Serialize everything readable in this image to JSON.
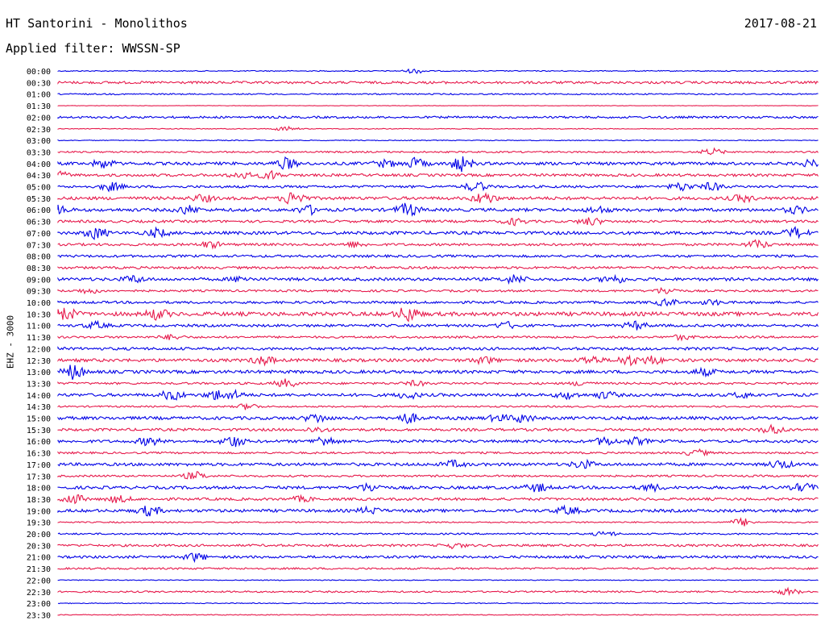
{
  "header": {
    "station": "HT Santorini - Monolithos",
    "date": "2017-08-21",
    "filter_label": "Applied filter: WWSSN-SP",
    "channel_label": "EHZ - 3000"
  },
  "colors": {
    "even_trace": "#0000e6",
    "odd_trace": "#e6194b"
  },
  "chart_data": {
    "type": "line",
    "title": "HT Santorini - Monolithos",
    "categories": [
      "00:00",
      "00:30",
      "01:00",
      "01:30",
      "02:00",
      "02:30",
      "03:00",
      "03:30",
      "04:00",
      "04:30",
      "05:00",
      "05:30",
      "06:00",
      "06:30",
      "07:00",
      "07:30",
      "08:00",
      "08:30",
      "09:00",
      "09:30",
      "10:00",
      "10:30",
      "11:00",
      "11:30",
      "12:00",
      "12:30",
      "13:00",
      "13:30",
      "14:00",
      "14:30",
      "15:00",
      "15:30",
      "16:00",
      "16:30",
      "17:00",
      "17:30",
      "18:00",
      "18:30",
      "19:00",
      "19:30",
      "20:00",
      "20:30",
      "21:00",
      "21:30",
      "22:00",
      "22:30",
      "23:00",
      "23:30"
    ],
    "series": [
      {
        "noise": 0.6,
        "events": [
          [
            47,
            3
          ]
        ]
      },
      {
        "noise": 1.5,
        "events": []
      },
      {
        "noise": 0.8,
        "events": []
      },
      {
        "noise": 0.3,
        "events": []
      },
      {
        "noise": 1.3,
        "events": []
      },
      {
        "noise": 0.5,
        "events": [
          [
            30,
            3
          ]
        ]
      },
      {
        "noise": 0.5,
        "events": []
      },
      {
        "noise": 1.0,
        "events": [
          [
            86,
            4
          ]
        ]
      },
      {
        "noise": 1.8,
        "events": [
          [
            6,
            5
          ],
          [
            30,
            7
          ],
          [
            43,
            4
          ],
          [
            47,
            6
          ],
          [
            53,
            9
          ],
          [
            99,
            4
          ]
        ]
      },
      {
        "noise": 1.6,
        "events": [
          [
            0,
            4
          ],
          [
            24,
            4
          ],
          [
            28,
            5
          ]
        ]
      },
      {
        "noise": 1.5,
        "events": [
          [
            7,
            5
          ],
          [
            55,
            6
          ],
          [
            82,
            5
          ],
          [
            86,
            5
          ]
        ]
      },
      {
        "noise": 1.9,
        "events": [
          [
            19,
            4
          ],
          [
            31,
            9
          ],
          [
            56,
            7
          ],
          [
            90,
            4
          ]
        ]
      },
      {
        "noise": 1.9,
        "events": [
          [
            0,
            5
          ],
          [
            17,
            5
          ],
          [
            33,
            5
          ],
          [
            46,
            8
          ],
          [
            71,
            4
          ],
          [
            97,
            4
          ]
        ]
      },
      {
        "noise": 1.5,
        "events": [
          [
            60,
            4
          ],
          [
            70,
            5
          ]
        ]
      },
      {
        "noise": 1.9,
        "events": [
          [
            5,
            7
          ],
          [
            13,
            5
          ],
          [
            97,
            6
          ]
        ]
      },
      {
        "noise": 1.5,
        "events": [
          [
            20,
            4
          ],
          [
            39,
            3
          ],
          [
            92,
            5
          ]
        ]
      },
      {
        "noise": 1.5,
        "events": []
      },
      {
        "noise": 1.5,
        "events": []
      },
      {
        "noise": 1.8,
        "events": [
          [
            10,
            4
          ],
          [
            24,
            3
          ],
          [
            60,
            5
          ],
          [
            73,
            5
          ]
        ]
      },
      {
        "noise": 1.3,
        "events": [
          [
            4,
            3
          ],
          [
            80,
            4
          ]
        ]
      },
      {
        "noise": 1.5,
        "events": [
          [
            80,
            4
          ],
          [
            86,
            3
          ]
        ]
      },
      {
        "noise": 2.4,
        "events": [
          [
            1,
            7
          ],
          [
            13,
            6
          ],
          [
            46,
            9
          ]
        ]
      },
      {
        "noise": 1.6,
        "events": [
          [
            5,
            4
          ],
          [
            59,
            4
          ],
          [
            76,
            5
          ]
        ]
      },
      {
        "noise": 1.3,
        "events": [
          [
            15,
            3
          ],
          [
            82,
            3
          ]
        ]
      },
      {
        "noise": 1.7,
        "events": []
      },
      {
        "noise": 1.9,
        "events": [
          [
            27,
            5
          ],
          [
            56,
            4
          ],
          [
            70,
            5
          ],
          [
            75,
            6
          ],
          [
            78,
            5
          ]
        ]
      },
      {
        "noise": 1.9,
        "events": [
          [
            2,
            9
          ],
          [
            85,
            4
          ]
        ]
      },
      {
        "noise": 1.3,
        "events": [
          [
            30,
            5
          ],
          [
            47,
            3
          ],
          [
            69,
            3
          ]
        ]
      },
      {
        "noise": 1.8,
        "events": [
          [
            15,
            6
          ],
          [
            21,
            6
          ],
          [
            23,
            5
          ],
          [
            46,
            4
          ],
          [
            67,
            4
          ],
          [
            72,
            4
          ],
          [
            90,
            3
          ]
        ]
      },
      {
        "noise": 1.0,
        "events": [
          [
            25,
            4
          ]
        ]
      },
      {
        "noise": 1.9,
        "events": [
          [
            34,
            5
          ],
          [
            46,
            6
          ],
          [
            58,
            4
          ],
          [
            61,
            5
          ]
        ]
      },
      {
        "noise": 1.6,
        "events": [
          [
            34,
            3
          ],
          [
            94,
            6
          ]
        ]
      },
      {
        "noise": 1.7,
        "events": [
          [
            12,
            5
          ],
          [
            23,
            7
          ],
          [
            35,
            6
          ],
          [
            72,
            5
          ],
          [
            76,
            4
          ]
        ]
      },
      {
        "noise": 1.2,
        "events": [
          [
            84,
            4
          ]
        ]
      },
      {
        "noise": 1.8,
        "events": [
          [
            52,
            4
          ],
          [
            69,
            5
          ],
          [
            95,
            5
          ]
        ]
      },
      {
        "noise": 1.2,
        "events": [
          [
            18,
            5
          ]
        ]
      },
      {
        "noise": 1.8,
        "events": [
          [
            41,
            5
          ],
          [
            63,
            5
          ],
          [
            78,
            4
          ],
          [
            98,
            5
          ]
        ]
      },
      {
        "noise": 1.6,
        "events": [
          [
            2,
            6
          ],
          [
            8,
            4
          ],
          [
            32,
            3
          ]
        ]
      },
      {
        "noise": 1.8,
        "events": [
          [
            12,
            6
          ],
          [
            41,
            4
          ],
          [
            67,
            5
          ]
        ]
      },
      {
        "noise": 0.8,
        "events": [
          [
            90,
            5
          ]
        ]
      },
      {
        "noise": 1.0,
        "events": [
          [
            72,
            3
          ]
        ]
      },
      {
        "noise": 1.4,
        "events": [
          [
            52,
            3
          ]
        ]
      },
      {
        "noise": 1.5,
        "events": [
          [
            18,
            5
          ]
        ]
      },
      {
        "noise": 1.1,
        "events": []
      },
      {
        "noise": 0.5,
        "events": []
      },
      {
        "noise": 1.0,
        "events": [
          [
            96,
            4
          ]
        ]
      },
      {
        "noise": 0.5,
        "events": []
      },
      {
        "noise": 0.5,
        "events": []
      }
    ]
  }
}
